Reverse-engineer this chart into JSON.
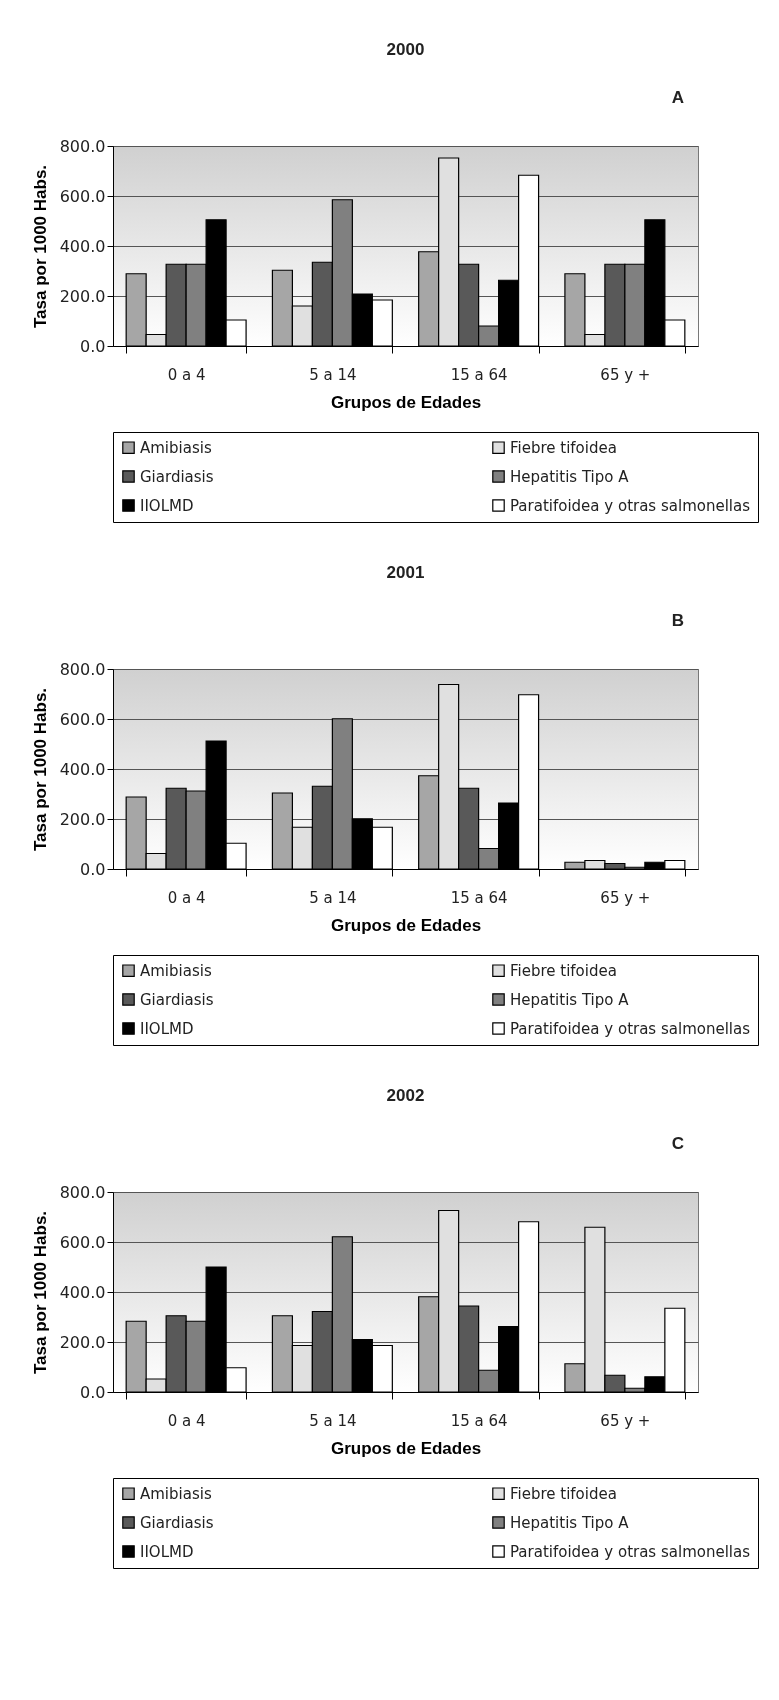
{
  "chart_data": [
    {
      "type": "bar",
      "title": "2000",
      "annotations": [
        "A"
      ],
      "xlabel": "Grupos de Edades",
      "ylabel": "Tasa por 1000 Habs.",
      "categories": [
        "0 a 4",
        "5 a 14",
        "15 a 64",
        "65 y +"
      ],
      "ylim": [
        0,
        800
      ],
      "yticks": [
        {
          "value": 0,
          "label": "0.0"
        },
        {
          "value": 200,
          "label": "200.0"
        },
        {
          "value": 400,
          "label": "400.0"
        },
        {
          "value": 600,
          "label": "600.0"
        },
        {
          "value": 800,
          "label": "800.0"
        }
      ],
      "grid": "y",
      "legend": "bottom",
      "series": [
        {
          "name": "Amibiasis",
          "color": "#a6a6a6",
          "values": [
            289,
            303,
            377,
            289
          ]
        },
        {
          "name": "Fiebre tifoidea",
          "color": "#e0e0e0",
          "values": [
            46,
            160,
            752,
            46
          ]
        },
        {
          "name": "Giardiasis",
          "color": "#595959",
          "values": [
            327,
            335,
            327,
            327
          ]
        },
        {
          "name": "Hepatitis Tipo A",
          "color": "#808080",
          "values": [
            327,
            585,
            80,
            327
          ]
        },
        {
          "name": "IIOLMD",
          "color": "#000000",
          "values": [
            505,
            208,
            263,
            505
          ]
        },
        {
          "name": "Paratifoidea y otras salmonellas",
          "color": "#ffffff",
          "values": [
            104,
            184,
            683,
            104
          ]
        }
      ]
    },
    {
      "type": "bar",
      "title": "2001",
      "annotations": [
        "B"
      ],
      "xlabel": "Grupos de Edades",
      "ylabel": "Tasa por 1000 Habs.",
      "categories": [
        "0 a 4",
        "5 a 14",
        "15 a 64",
        "65 y +"
      ],
      "ylim": [
        0,
        800
      ],
      "yticks": [
        {
          "value": 0,
          "label": "0.0"
        },
        {
          "value": 200,
          "label": "200.0"
        },
        {
          "value": 400,
          "label": "400.0"
        },
        {
          "value": 600,
          "label": "600.0"
        },
        {
          "value": 800,
          "label": "800.0"
        }
      ],
      "grid": "y",
      "legend": "bottom",
      "series": [
        {
          "name": "Amibiasis",
          "color": "#a6a6a6",
          "values": [
            288,
            304,
            373,
            27
          ]
        },
        {
          "name": "Fiebre tifoidea",
          "color": "#e0e0e0",
          "values": [
            62,
            167,
            738,
            34
          ]
        },
        {
          "name": "Giardiasis",
          "color": "#595959",
          "values": [
            323,
            331,
            323,
            22
          ]
        },
        {
          "name": "Hepatitis Tipo A",
          "color": "#808080",
          "values": [
            312,
            601,
            82,
            7
          ]
        },
        {
          "name": "IIOLMD",
          "color": "#000000",
          "values": [
            512,
            201,
            264,
            27
          ]
        },
        {
          "name": "Paratifoidea y otras salmonellas",
          "color": "#ffffff",
          "values": [
            103,
            167,
            697,
            34
          ]
        }
      ]
    },
    {
      "type": "bar",
      "title": "2002",
      "annotations": [
        "C"
      ],
      "xlabel": "Grupos de Edades",
      "ylabel": "Tasa por 1000 Habs.",
      "categories": [
        "0 a 4",
        "5 a 14",
        "15 a 64",
        "65 y +"
      ],
      "ylim": [
        0,
        800
      ],
      "yticks": [
        {
          "value": 0,
          "label": "0.0"
        },
        {
          "value": 200,
          "label": "200.0"
        },
        {
          "value": 400,
          "label": "400.0"
        },
        {
          "value": 600,
          "label": "600.0"
        },
        {
          "value": 800,
          "label": "800.0"
        }
      ],
      "grid": "y",
      "legend": "bottom",
      "series": [
        {
          "name": "Amibiasis",
          "color": "#a6a6a6",
          "values": [
            283,
            305,
            381,
            113
          ]
        },
        {
          "name": "Fiebre tifoidea",
          "color": "#e0e0e0",
          "values": [
            52,
            186,
            726,
            659
          ]
        },
        {
          "name": "Giardiasis",
          "color": "#595959",
          "values": [
            305,
            322,
            344,
            67
          ]
        },
        {
          "name": "Hepatitis Tipo A",
          "color": "#808080",
          "values": [
            283,
            621,
            87,
            15
          ]
        },
        {
          "name": "IIOLMD",
          "color": "#000000",
          "values": [
            500,
            210,
            262,
            61
          ]
        },
        {
          "name": "Paratifoidea y otras salmonellas",
          "color": "#ffffff",
          "values": [
            97,
            186,
            681,
            335
          ]
        }
      ]
    }
  ]
}
